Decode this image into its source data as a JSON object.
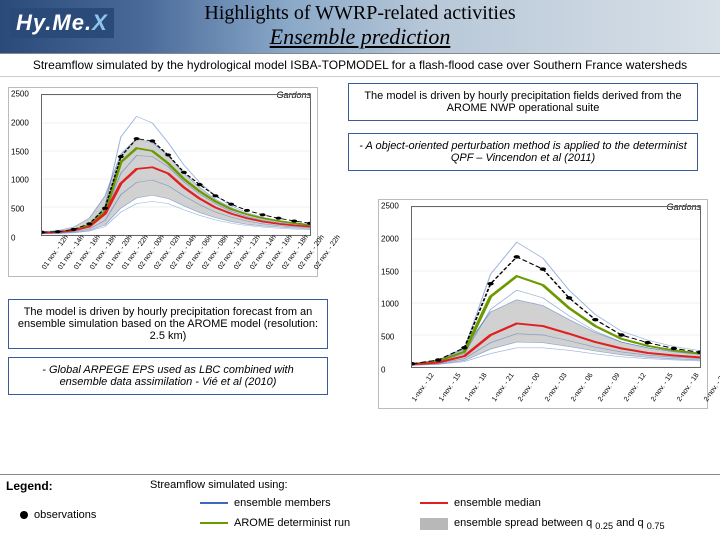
{
  "header": {
    "logo_main": "Hy.Me.",
    "logo_suffix": "X",
    "title": "Highlights of WWRP-related activities",
    "subtitle": "Ensemble prediction"
  },
  "subtitle_text": "Streamflow simulated by the hydrological model ISBA-TOPMODEL for a flash-flood case over Southern France watersheds",
  "textbox1": "The model is driven by hourly precipitation fields derived from the  AROME NWP operational suite",
  "textbox2": "- A object-oriented perturbation method is applied to the determinist QPF – Vincendon et al (2011)",
  "textbox3": "The model is driven by hourly precipitation forecast from an ensemble simulation based on the AROME model (resolution: 2.5 km)",
  "textbox4": "- Global ARPEGE EPS used as LBC combined with ensemble data assimilation - Vié et al (2010)",
  "chart1": {
    "type": "line-ensemble",
    "region_label": "Gardons",
    "ylim": [
      0,
      2500
    ],
    "ytick_step": 500,
    "x_labels": [
      "01 nov. - 12h",
      "01 nov. - 14h",
      "01 nov. - 16h",
      "01 nov. - 18h",
      "01 nov. - 20h",
      "01 nov. - 22h",
      "02 nov. - 00h",
      "02 nov. - 02h",
      "02 nov. - 04h",
      "02 nov. - 06h",
      "02 nov. - 08h",
      "02 nov. - 10h",
      "02 nov. - 12h",
      "02 nov. - 14h",
      "02 nov. - 16h",
      "02 nov. - 18h",
      "02 nov. - 20h",
      "02 nov. - 22h"
    ],
    "observations": [
      50,
      60,
      100,
      200,
      480,
      1400,
      1720,
      1680,
      1430,
      1120,
      900,
      700,
      550,
      440,
      360,
      300,
      250,
      210
    ],
    "median": [
      40,
      50,
      80,
      150,
      380,
      920,
      1180,
      1210,
      1100,
      850,
      650,
      490,
      380,
      300,
      240,
      200,
      170,
      150
    ],
    "deterministic": [
      45,
      55,
      88,
      180,
      420,
      1300,
      1550,
      1500,
      1280,
      1000,
      780,
      600,
      460,
      370,
      300,
      250,
      210,
      180
    ],
    "spread_upper": [
      60,
      80,
      140,
      300,
      700,
      1450,
      1720,
      1650,
      1420,
      1100,
      850,
      640,
      490,
      380,
      300,
      250,
      210,
      180
    ],
    "spread_lower": [
      25,
      30,
      45,
      80,
      180,
      480,
      660,
      710,
      650,
      520,
      400,
      310,
      240,
      190,
      160,
      140,
      120,
      105
    ],
    "ensemble_extra": [
      [
        30,
        40,
        70,
        160,
        520,
        1750,
        2120,
        2000,
        1650,
        1250,
        940,
        700,
        520,
        400,
        320,
        260,
        220,
        190
      ],
      [
        35,
        45,
        75,
        140,
        400,
        1100,
        1420,
        1400,
        1220,
        950,
        730,
        560,
        420,
        330,
        260,
        220,
        190,
        165
      ],
      [
        28,
        35,
        56,
        110,
        260,
        720,
        940,
        980,
        880,
        700,
        540,
        410,
        320,
        250,
        200,
        170,
        145,
        128
      ],
      [
        22,
        26,
        38,
        70,
        150,
        410,
        560,
        600,
        560,
        450,
        350,
        270,
        210,
        170,
        140,
        120,
        105,
        92
      ]
    ],
    "colors": {
      "axis": "#666666",
      "grid": "#e0e0e0",
      "obs": "#000000",
      "median": "#e02020",
      "deterministic": "#6a9a00",
      "ensemble": "#3a6ab8",
      "spread_fill": "#b8b8b8",
      "spread_fill_opacity": 0.65
    },
    "line_width": 1.2,
    "marker_size": 3
  },
  "chart2": {
    "type": "line-ensemble",
    "region_label": "Gardons",
    "ylim": [
      0,
      2500
    ],
    "ytick_step": 500,
    "x_labels": [
      "1-nov. - 12",
      "1-nov. - 15",
      "1-nov. - 18",
      "1-nov. - 21",
      "2-nov. - 00",
      "2-nov. - 03",
      "2-nov. - 06",
      "2-nov. - 09",
      "2-nov. - 12",
      "2-nov. - 15",
      "2-nov. - 18",
      "2-nov. - 21"
    ],
    "observations": [
      50,
      110,
      300,
      1300,
      1720,
      1530,
      1080,
      740,
      500,
      380,
      290,
      230
    ],
    "median": [
      40,
      70,
      170,
      500,
      680,
      640,
      520,
      390,
      290,
      220,
      180,
      150
    ],
    "deterministic": [
      45,
      90,
      240,
      1100,
      1420,
      1280,
      920,
      640,
      440,
      330,
      260,
      210
    ],
    "spread_upper": [
      55,
      110,
      300,
      860,
      1050,
      960,
      740,
      540,
      390,
      300,
      240,
      200
    ],
    "spread_lower": [
      28,
      45,
      100,
      280,
      390,
      380,
      320,
      250,
      190,
      150,
      125,
      108
    ],
    "ensemble_extra": [
      [
        48,
        100,
        280,
        1450,
        1950,
        1700,
        1200,
        820,
        560,
        420,
        320,
        255
      ],
      [
        42,
        85,
        210,
        900,
        1200,
        1080,
        800,
        560,
        390,
        300,
        240,
        195
      ],
      [
        34,
        58,
        130,
        380,
        520,
        500,
        410,
        310,
        235,
        185,
        155,
        132
      ],
      [
        26,
        40,
        85,
        210,
        300,
        300,
        260,
        205,
        160,
        130,
        110,
        95
      ]
    ],
    "colors": {
      "axis": "#666666",
      "grid": "#e0e0e0",
      "obs": "#000000",
      "median": "#e02020",
      "deterministic": "#6a9a00",
      "ensemble": "#3a6ab8",
      "spread_fill": "#b8b8b8",
      "spread_fill_opacity": 0.65
    },
    "line_width": 1.2,
    "marker_size": 3
  },
  "legend": {
    "title": "Legend:",
    "intro": "Streamflow simulated using:",
    "items": {
      "observations": "observations",
      "members": "ensemble members",
      "deterministic": "AROME determinist run",
      "median": "ensemble median",
      "spread_pre": "ensemble spread between q ",
      "spread_mid": " and q ",
      "q_low": "0.25",
      "q_high": "0.75"
    },
    "colors": {
      "members": "#3a6ab8",
      "deterministic": "#6a9a00",
      "median": "#e02020",
      "spread": "#b8b8b8"
    }
  }
}
